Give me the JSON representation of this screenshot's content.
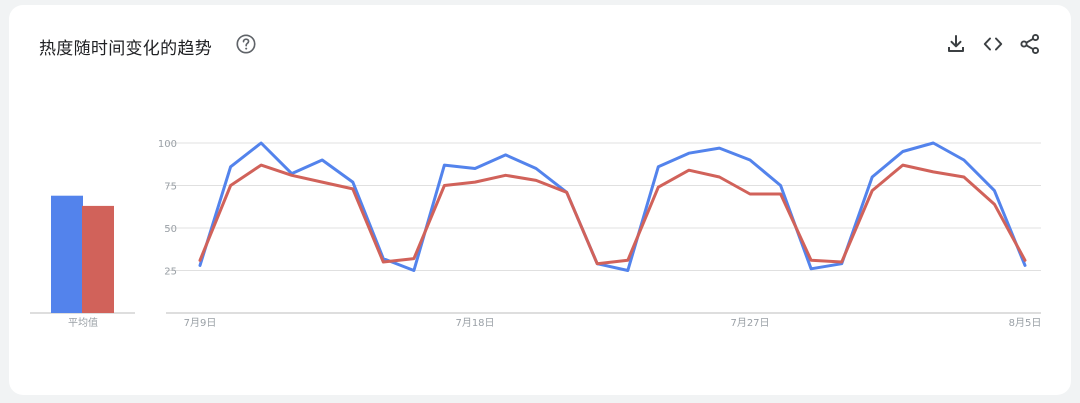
{
  "header": {
    "title": "热度随时间变化的趋势"
  },
  "icons": {
    "help": "help-circle-icon",
    "download": "download-icon",
    "embed": "code-icon",
    "share": "share-icon"
  },
  "colors": {
    "series_1": "#5383ec",
    "series_2": "#d1625a",
    "grid": "#e0e0e0",
    "axis": "#bdbdbd",
    "label": "#9aa0a6"
  },
  "chart_data": [
    {
      "type": "bar",
      "xlabel": "平均值",
      "categories": [
        "平均值"
      ],
      "series": [
        {
          "values": [
            69
          ]
        },
        {
          "values": [
            63
          ]
        }
      ],
      "ylim": [
        0,
        100
      ]
    },
    {
      "type": "line",
      "x": [
        "7月9日",
        "7月10日",
        "7月11日",
        "7月12日",
        "7月13日",
        "7月14日",
        "7月15日",
        "7月16日",
        "7月17日",
        "7月18日",
        "7月19日",
        "7月20日",
        "7月21日",
        "7月22日",
        "7月23日",
        "7月24日",
        "7月25日",
        "7月26日",
        "7月27日",
        "7月28日",
        "7月29日",
        "7月30日",
        "7月31日",
        "8月1日",
        "8月2日",
        "8月3日",
        "8月4日",
        "8月5日"
      ],
      "x_tick_labels": [
        "7月9日",
        "7月18日",
        "7月27日",
        "8月5日"
      ],
      "y_ticks": [
        25,
        50,
        75,
        100
      ],
      "ylim": [
        0,
        100
      ],
      "grid": true,
      "series": [
        {
          "values": [
            28,
            86,
            100,
            82,
            90,
            77,
            32,
            25,
            87,
            85,
            93,
            85,
            71,
            29,
            25,
            86,
            94,
            97,
            90,
            75,
            26,
            29,
            80,
            95,
            100,
            90,
            72,
            28
          ]
        },
        {
          "values": [
            31,
            75,
            87,
            81,
            77,
            73,
            30,
            32,
            75,
            77,
            81,
            78,
            71,
            29,
            31,
            74,
            84,
            80,
            70,
            70,
            31,
            30,
            72,
            87,
            83,
            80,
            64,
            31
          ]
        }
      ]
    }
  ]
}
